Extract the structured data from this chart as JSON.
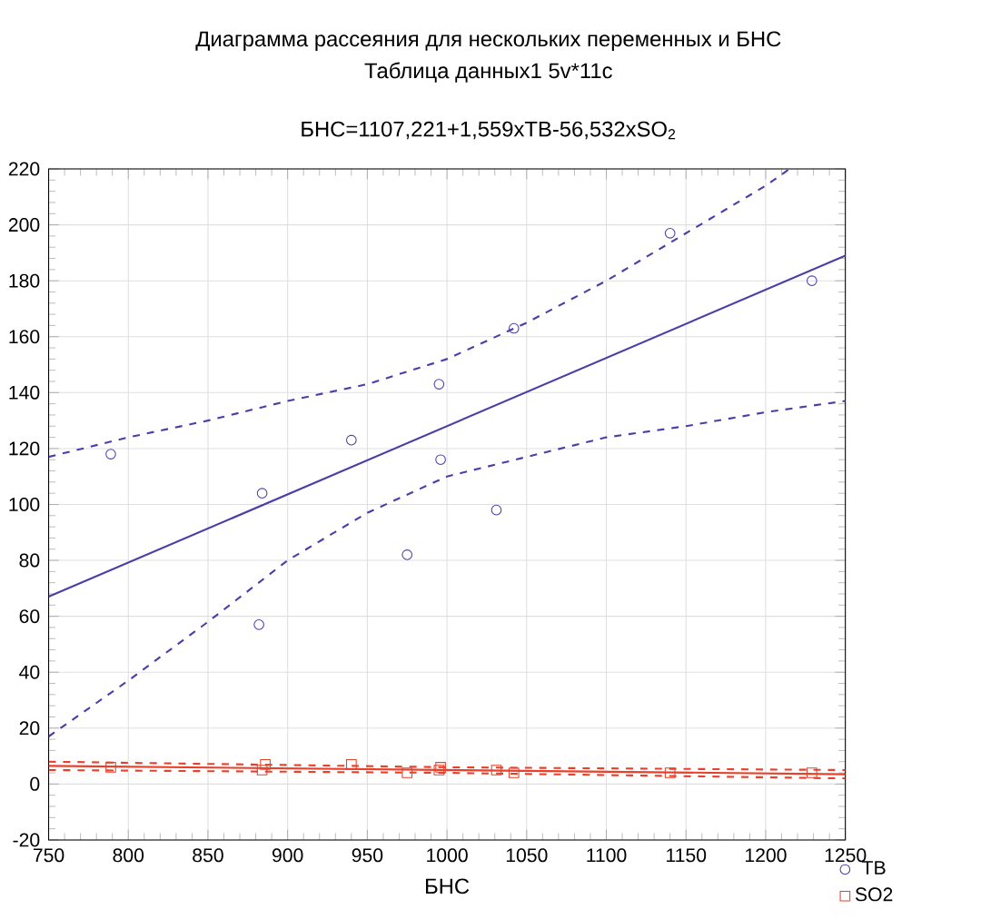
{
  "chart_data": {
    "type": "scatter",
    "title": "Диаграмма рассеяния для нескольких переменных и БНС",
    "subtitle": "Таблица данных1 5v*11c",
    "annotations": [
      "БНС=1107,221+1,559xТВ-56,532xSO$_{2}$"
    ],
    "xlabel": "БНС",
    "xlim": [
      750,
      1250
    ],
    "xticks": [
      750,
      800,
      850,
      900,
      950,
      1000,
      1050,
      1100,
      1150,
      1200,
      1250
    ],
    "ylim": [
      -20,
      220
    ],
    "yticks": [
      -20,
      0,
      20,
      40,
      60,
      80,
      100,
      120,
      140,
      160,
      180,
      200,
      220
    ],
    "grid": true,
    "legend": "bottom right",
    "series": [
      {
        "name": "ТВ",
        "marker": "circle",
        "color": "#4a3fa8",
        "x": [
          789,
          884,
          882,
          940,
          975,
          995,
          996,
          1031,
          1042,
          1140,
          1229
        ],
        "values": [
          118,
          104,
          57,
          123,
          82,
          143,
          116,
          98,
          163,
          197,
          180
        ]
      },
      {
        "name": "SO2",
        "marker": "square",
        "color": "#e8402a",
        "x": [
          789,
          884,
          886,
          940,
          975,
          995,
          996,
          1031,
          1042,
          1140,
          1229
        ],
        "values": [
          6,
          5,
          7,
          7,
          4,
          5,
          6,
          5,
          4,
          4,
          4
        ]
      },
      {
        "type": "line",
        "line_style": "solid",
        "color": "#4a3fa8",
        "x": [
          750,
          1250
        ],
        "values": [
          67,
          189
        ]
      },
      {
        "type": "line",
        "line_style": "dashed",
        "color": "#4a3fa8",
        "x": [
          750,
          800,
          850,
          900,
          950,
          1000,
          1050,
          1100,
          1150,
          1200,
          1215
        ],
        "values": [
          117,
          124,
          130,
          137,
          143,
          152,
          165,
          180,
          197,
          214,
          220
        ]
      },
      {
        "type": "line",
        "line_style": "dashed",
        "color": "#4a3fa8",
        "x": [
          750,
          800,
          850,
          900,
          950,
          1000,
          1050,
          1100,
          1150,
          1200,
          1250
        ],
        "values": [
          17,
          37,
          58,
          80,
          97,
          110,
          117,
          124,
          128,
          133,
          137
        ]
      },
      {
        "type": "line",
        "line_style": "solid",
        "color": "#e8402a",
        "x": [
          750,
          1250
        ],
        "values": [
          6.5,
          3.5
        ]
      },
      {
        "type": "line",
        "line_style": "dashed",
        "color": "#e8402a",
        "x": [
          750,
          1000,
          1250
        ],
        "values": [
          8,
          6,
          5
        ]
      },
      {
        "type": "line",
        "line_style": "dashed",
        "color": "#e8402a",
        "x": [
          750,
          1000,
          1250
        ],
        "values": [
          5,
          4,
          2
        ]
      }
    ]
  }
}
